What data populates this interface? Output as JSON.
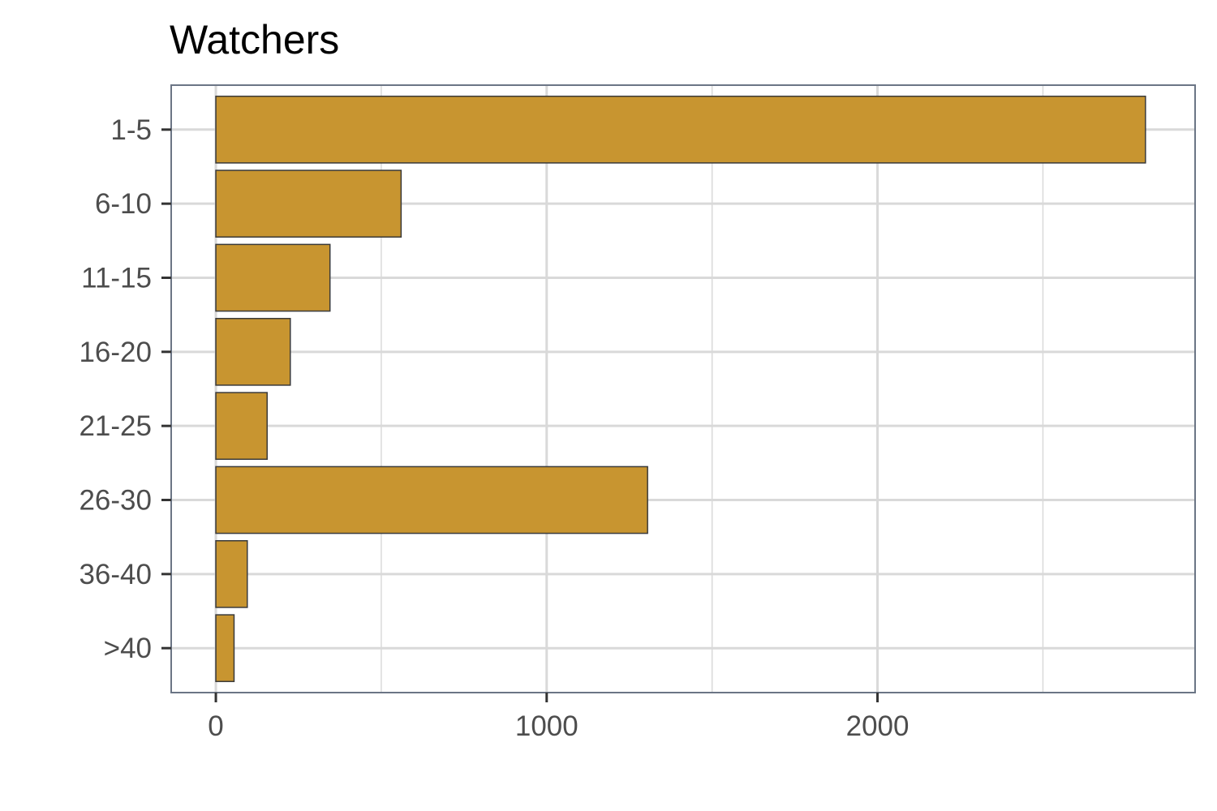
{
  "chart_data": {
    "type": "bar",
    "orientation": "horizontal",
    "title": "Watchers",
    "xlabel": "",
    "ylabel": "",
    "categories": [
      "1-5",
      "6-10",
      "11-15",
      "16-20",
      "21-25",
      "26-30",
      "36-40",
      ">40"
    ],
    "values": [
      2810,
      560,
      345,
      225,
      155,
      1305,
      95,
      55
    ],
    "xlim": [
      -135,
      2960
    ],
    "xticks": [
      0,
      1000,
      2000
    ],
    "xtick_labels": [
      "0",
      "1000",
      "2000"
    ],
    "grid": true,
    "legend": "none",
    "colors": {
      "bar_fill": "#c89530",
      "bar_stroke": "#3a3a3a",
      "panel_border": "#6b7585",
      "grid_major": "#d9d9d9",
      "axis_text": "#4d4d4d",
      "tick_mark": "#333333"
    }
  }
}
